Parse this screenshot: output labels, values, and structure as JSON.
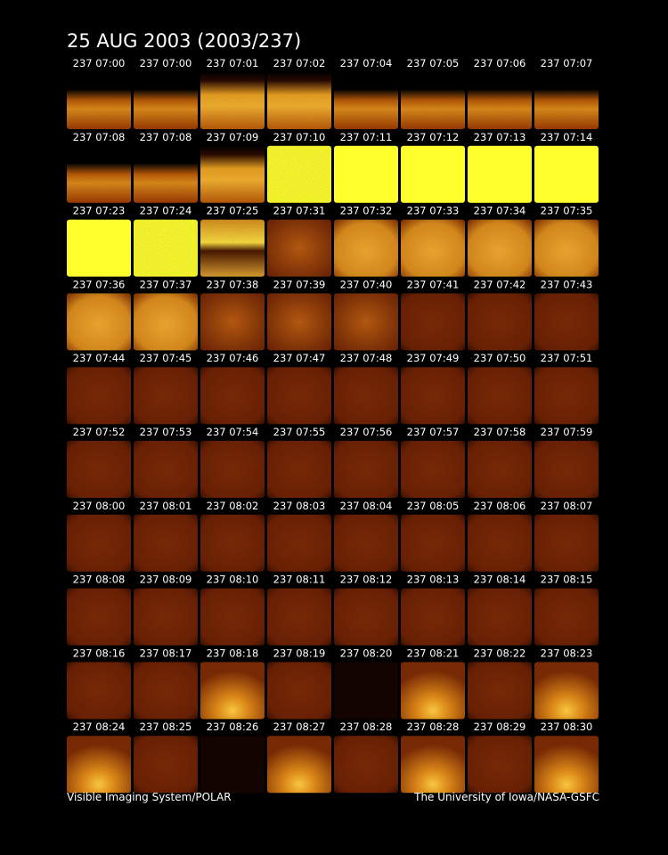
{
  "title": "25 AUG 2003  (2003/237)",
  "timestamps": [
    "237 07:00",
    "237 07:00",
    "237 07:01",
    "237 07:02",
    "237 07:04",
    "237 07:05",
    "237 07:06",
    "237 07:07",
    "237 07:08",
    "237 07:08",
    "237 07:09",
    "237 07:10",
    "237 07:11",
    "237 07:12",
    "237 07:13",
    "237 07:14",
    "237 07:23",
    "237 07:24",
    "237 07:25",
    "237 07:31",
    "237 07:32",
    "237 07:33",
    "237 07:34",
    "237 07:35",
    "237 07:36",
    "237 07:37",
    "237 07:38",
    "237 07:39",
    "237 07:40",
    "237 07:41",
    "237 07:42",
    "237 07:43",
    "237 07:44",
    "237 07:45",
    "237 07:46",
    "237 07:47",
    "237 07:48",
    "237 07:49",
    "237 07:50",
    "237 07:51",
    "237 07:52",
    "237 07:53",
    "237 07:54",
    "237 07:55",
    "237 07:56",
    "237 07:57",
    "237 07:58",
    "237 07:59",
    "237 08:00",
    "237 08:01",
    "237 08:02",
    "237 08:03",
    "237 08:04",
    "237 08:05",
    "237 08:06",
    "237 08:07",
    "237 08:08",
    "237 08:09",
    "237 08:10",
    "237 08:11",
    "237 08:12",
    "237 08:13",
    "237 08:14",
    "237 08:15",
    "237 08:16",
    "237 08:17",
    "237 08:18",
    "237 08:19",
    "237 08:20",
    "237 08:21",
    "237 08:22",
    "237 08:23",
    "237 08:24",
    "237 08:25",
    "237 08:26",
    "237 08:27",
    "237 08:28",
    "237 08:28",
    "237 08:29",
    "237 08:30"
  ],
  "footer": {
    "left": "Visible Imaging System/POLAR",
    "right": "The University of Iowa/NASA-GSFC"
  }
}
